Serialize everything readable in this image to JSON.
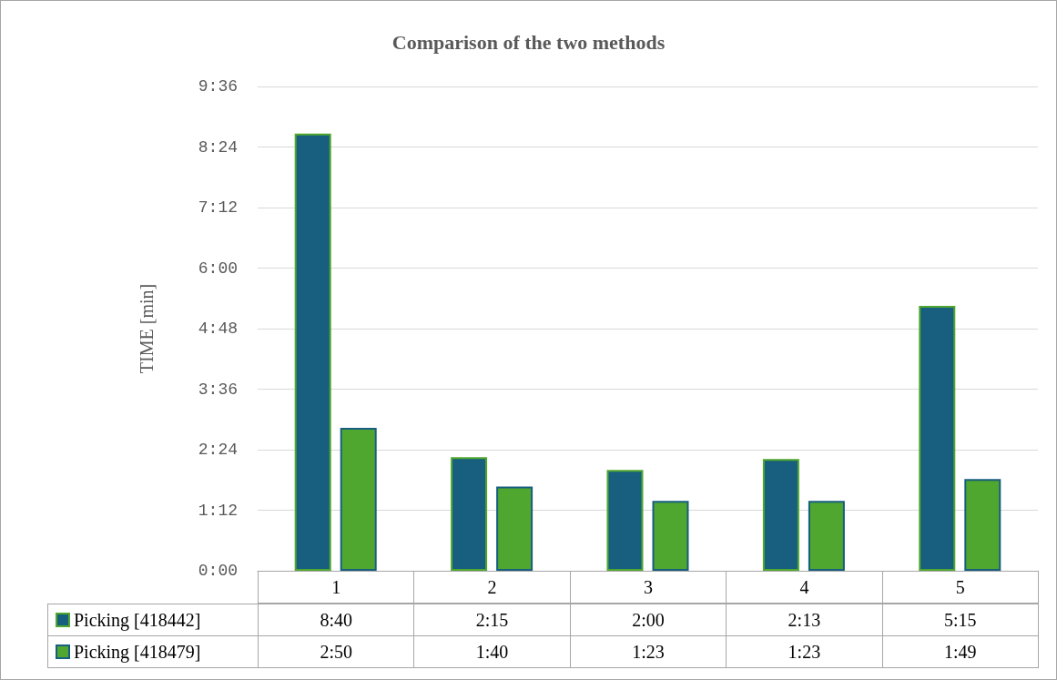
{
  "chart_data": {
    "type": "bar",
    "title": "Comparison of the two methods",
    "ylabel": "TIME [min]",
    "categories": [
      "1",
      "2",
      "3",
      "4",
      "5"
    ],
    "series": [
      {
        "name": "Picking [418442]",
        "color": "#175e7f",
        "values": [
          8.667,
          2.25,
          2.0,
          2.217,
          5.25
        ],
        "value_labels": [
          "8:40",
          "2:15",
          "2:00",
          "2:13",
          "5:15"
        ]
      },
      {
        "name": "Picking [418479]",
        "color": "#4fa72f",
        "values": [
          2.833,
          1.667,
          1.383,
          1.383,
          1.817
        ],
        "value_labels": [
          "2:50",
          "1:40",
          "1:23",
          "1:23",
          "1:49"
        ]
      }
    ],
    "ylim": [
      0,
      9.6
    ],
    "yticks": [
      {
        "value": 0,
        "label": "0:00"
      },
      {
        "value": 1.2,
        "label": "1:12"
      },
      {
        "value": 2.4,
        "label": "2:24"
      },
      {
        "value": 3.6,
        "label": "3:36"
      },
      {
        "value": 4.8,
        "label": "4:48"
      },
      {
        "value": 6,
        "label": "6:00"
      },
      {
        "value": 7.2,
        "label": "7:12"
      },
      {
        "value": 8.4,
        "label": "8:24"
      },
      {
        "value": 9.6,
        "label": "9:36"
      }
    ],
    "grid": "y",
    "legend": "bottom"
  }
}
